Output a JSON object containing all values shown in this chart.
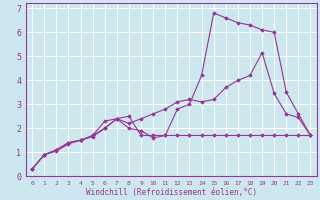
{
  "xlabel": "Windchill (Refroidissement éolien,°C)",
  "background_color": "#cce8ee",
  "grid_color": "#ffffff",
  "line_color": "#993399",
  "spine_color": "#993399",
  "xlim": [
    -0.5,
    23.5
  ],
  "ylim": [
    0,
    7.2
  ],
  "xticks": [
    0,
    1,
    2,
    3,
    4,
    5,
    6,
    7,
    8,
    9,
    10,
    11,
    12,
    13,
    14,
    15,
    16,
    17,
    18,
    19,
    20,
    21,
    22,
    23
  ],
  "yticks": [
    0,
    1,
    2,
    3,
    4,
    5,
    6,
    7
  ],
  "series": [
    [
      0.3,
      0.9,
      1.1,
      1.4,
      1.5,
      1.7,
      2.3,
      2.4,
      2.0,
      1.9,
      1.6,
      1.7,
      2.8,
      3.0,
      4.2,
      6.8,
      6.6,
      6.4,
      6.3,
      6.1,
      6.0,
      3.5,
      2.6,
      1.7
    ],
    [
      0.3,
      0.9,
      1.05,
      1.35,
      1.5,
      1.65,
      2.0,
      2.4,
      2.5,
      1.7,
      1.7,
      1.7,
      1.7,
      1.7,
      1.7,
      1.7,
      1.7,
      1.7,
      1.7,
      1.7,
      1.7,
      1.7,
      1.7,
      1.7
    ],
    [
      0.3,
      0.9,
      1.1,
      1.4,
      1.5,
      1.7,
      2.0,
      2.4,
      2.2,
      2.4,
      2.6,
      2.8,
      3.1,
      3.2,
      3.1,
      3.2,
      3.7,
      4.0,
      4.2,
      5.15,
      3.45,
      2.6,
      2.45,
      1.7
    ]
  ]
}
